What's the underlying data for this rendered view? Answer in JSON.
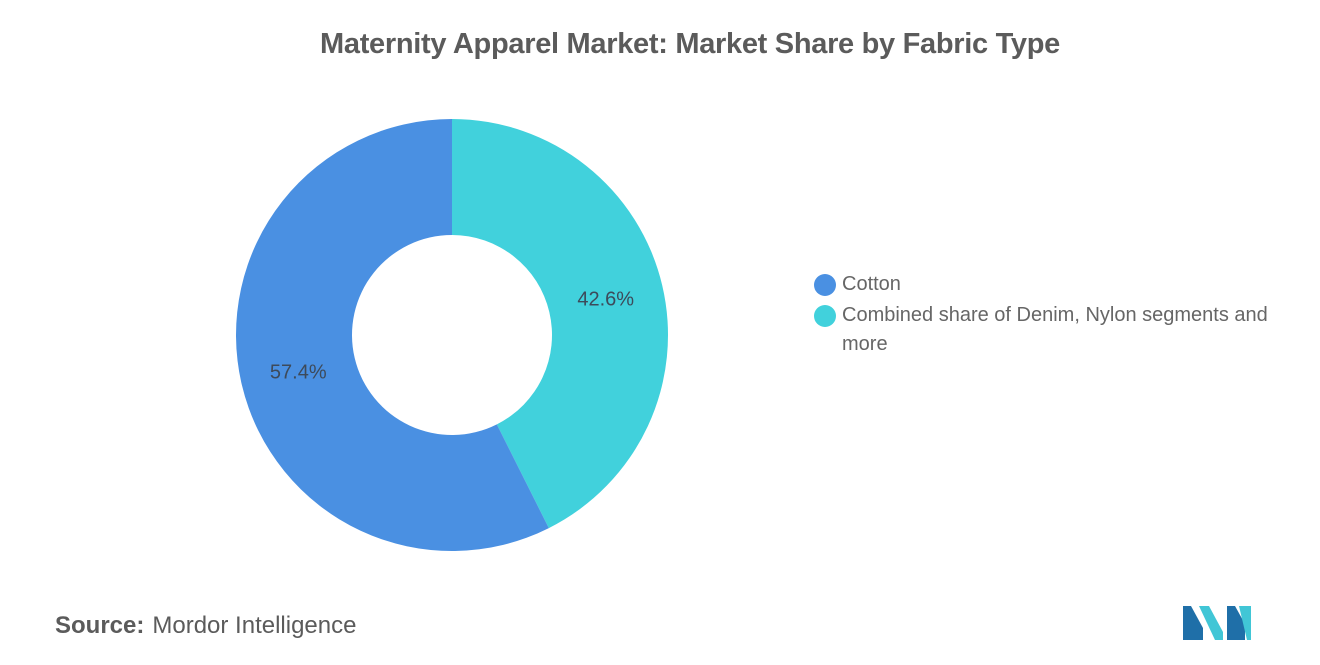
{
  "chart_data": {
    "type": "pie",
    "donut": true,
    "title": "Maternity Apparel Market: Market Share by Fabric Type",
    "slices": [
      {
        "label": "Cotton",
        "value": 57.4,
        "display": "57.4%",
        "color": "#4a90e2"
      },
      {
        "label": "Combined share of Denim, Nylon segments and more",
        "value": 42.6,
        "display": "42.6%",
        "color": "#41d1dc"
      }
    ],
    "legend_position": "right"
  },
  "source": {
    "label": "Source:",
    "text": "Mordor Intelligence"
  },
  "logo": {
    "name": "mordor-intelligence-logo",
    "colors": [
      "#1f6fa8",
      "#41c6d6"
    ]
  }
}
